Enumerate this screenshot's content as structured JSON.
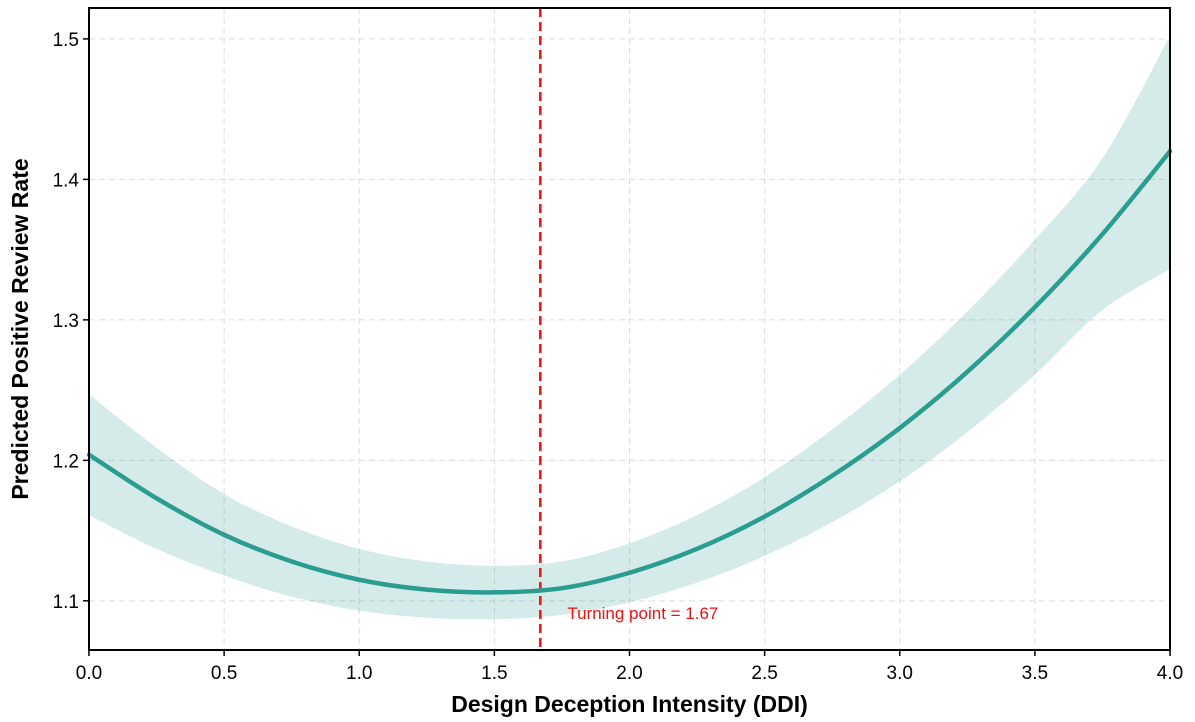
{
  "chart_data": {
    "type": "line",
    "title": "",
    "xlabel": "Design Deception Intensity (DDI)",
    "ylabel": "Predicted Positive Review Rate",
    "xlim": [
      0.0,
      4.0
    ],
    "ylim": [
      1.065,
      1.522
    ],
    "x_ticks": [
      0.0,
      0.5,
      1.0,
      1.5,
      2.0,
      2.5,
      3.0,
      3.5,
      4.0
    ],
    "x_tick_labels": [
      "0.0",
      "0.5",
      "1.0",
      "1.5",
      "2.0",
      "2.5",
      "3.0",
      "3.5",
      "4.0"
    ],
    "y_ticks": [
      1.1,
      1.2,
      1.3,
      1.4,
      1.5
    ],
    "y_tick_labels": [
      "1.1",
      "1.2",
      "1.3",
      "1.4",
      "1.5"
    ],
    "grid": true,
    "series": [
      {
        "x": [
          0.0,
          0.25,
          0.5,
          0.75,
          1.0,
          1.25,
          1.5,
          1.75,
          2.0,
          2.25,
          2.5,
          2.75,
          3.0,
          3.25,
          3.5,
          3.75,
          4.0
        ],
        "values": [
          1.204,
          1.173,
          1.147,
          1.128,
          1.115,
          1.108,
          1.106,
          1.109,
          1.12,
          1.137,
          1.16,
          1.189,
          1.223,
          1.263,
          1.309,
          1.361,
          1.42
        ],
        "lower": [
          1.161,
          1.137,
          1.118,
          1.103,
          1.093,
          1.088,
          1.087,
          1.09,
          1.099,
          1.113,
          1.132,
          1.156,
          1.185,
          1.22,
          1.261,
          1.307,
          1.336
        ],
        "upper": [
          1.247,
          1.209,
          1.176,
          1.153,
          1.137,
          1.128,
          1.125,
          1.128,
          1.141,
          1.161,
          1.188,
          1.222,
          1.261,
          1.306,
          1.357,
          1.415,
          1.502
        ],
        "color": "#2a9d8f",
        "band_color": "#2a9d8f"
      }
    ],
    "reference_line": {
      "x": 1.67,
      "color": "#ee1111",
      "style": "dashed"
    },
    "annotation": {
      "text": "Turning point = 1.67",
      "x": 1.77,
      "y": 1.087,
      "color": "#ee1111"
    }
  }
}
